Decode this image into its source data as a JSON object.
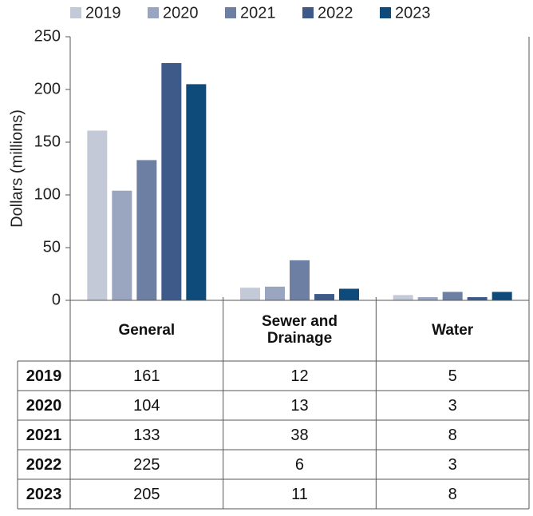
{
  "chart_data": {
    "type": "bar",
    "y_label": "Dollars (millions)",
    "categories": [
      "General",
      "Sewer and Drainage",
      "Water"
    ],
    "series": [
      {
        "name": "2019",
        "color": "#c4c9d8",
        "values": [
          161,
          12,
          5
        ]
      },
      {
        "name": "2020",
        "color": "#9aa5bf",
        "values": [
          104,
          13,
          3
        ]
      },
      {
        "name": "2021",
        "color": "#6d7fa3",
        "values": [
          133,
          38,
          8
        ]
      },
      {
        "name": "2022",
        "color": "#3e5a88",
        "values": [
          225,
          6,
          3
        ]
      },
      {
        "name": "2023",
        "color": "#0e4a7a",
        "values": [
          205,
          11,
          8
        ]
      }
    ],
    "ylim": [
      0,
      250
    ],
    "yticks": [
      0,
      50,
      100,
      150,
      200,
      250
    ],
    "legend": "top"
  }
}
